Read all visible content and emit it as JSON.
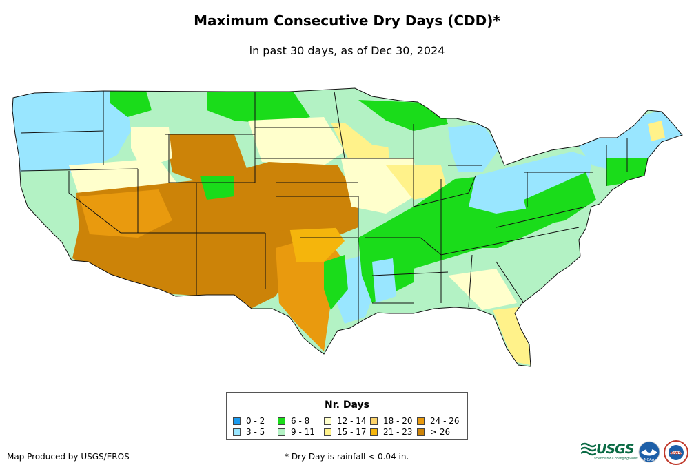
{
  "title": "Maximum Consecutive Dry Days (CDD)*",
  "subtitle": "in past 30 days, as of Dec 30, 2024",
  "legend": {
    "title": "Nr. Days",
    "items": [
      {
        "label": "0 - 2",
        "color": "#1a9bf0"
      },
      {
        "label": "3 - 5",
        "color": "#99e6ff"
      },
      {
        "label": "6 - 8",
        "color": "#1adc1a"
      },
      {
        "label": "9 - 11",
        "color": "#b3f2c4"
      },
      {
        "label": "12 - 14",
        "color": "#ffffcc"
      },
      {
        "label": "15 - 17",
        "color": "#fff28a"
      },
      {
        "label": "18 - 20",
        "color": "#fcd36a"
      },
      {
        "label": "21 - 23",
        "color": "#f5b50c"
      },
      {
        "label": "24 - 26",
        "color": "#e99a0e"
      },
      {
        "label": "> 26",
        "color": "#cc8308"
      }
    ]
  },
  "credit": "Map Produced by USGS/EROS",
  "footnote": "* Dry Day is rainfall < 0.04 in.",
  "logos": {
    "usgs": "USGS",
    "usgs_tagline": "science for a changing world",
    "noaa": "NOAA",
    "nws": "NWS"
  }
}
